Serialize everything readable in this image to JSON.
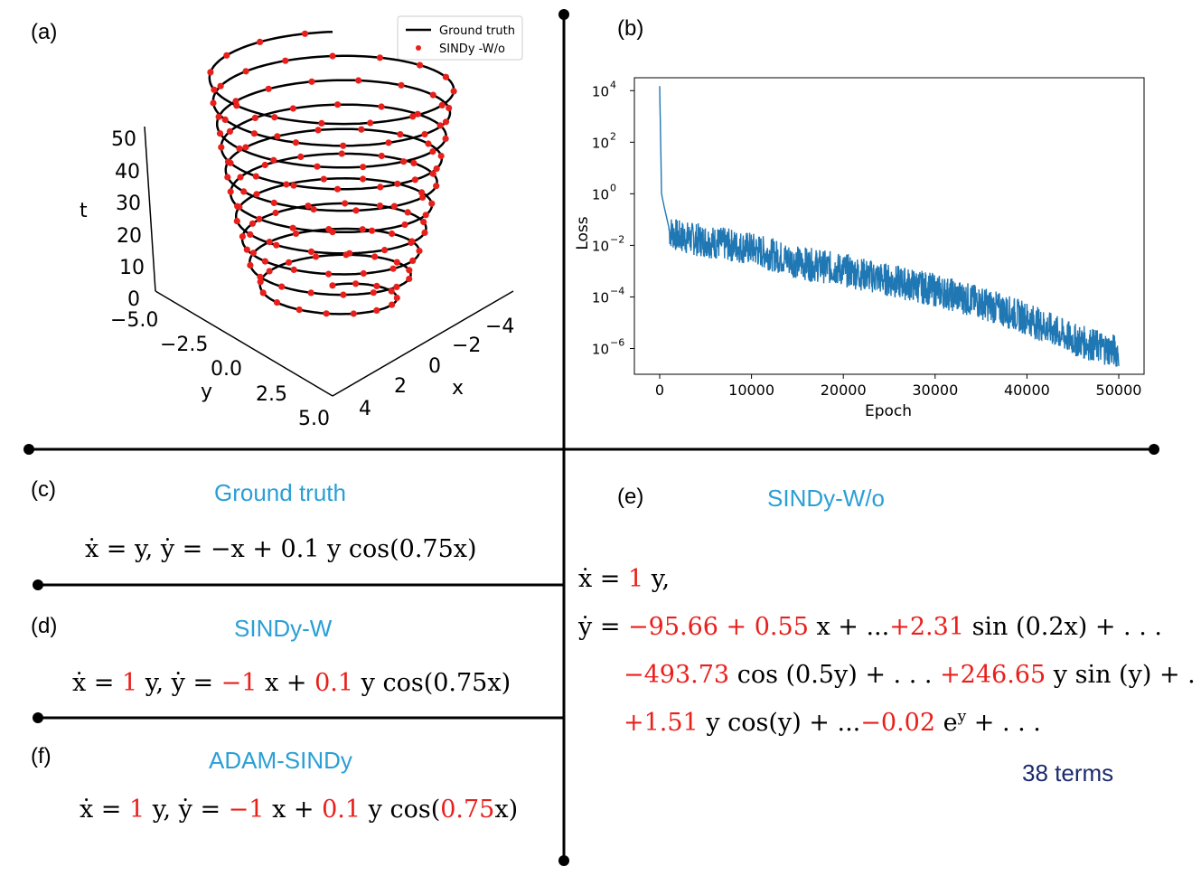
{
  "panels": {
    "a": {
      "label": "(a)",
      "legend": [
        "Ground truth",
        "SINDy -W/o"
      ],
      "axes": {
        "t_label": "t",
        "t_ticks": [
          "50",
          "40",
          "30",
          "20",
          "10",
          "0"
        ],
        "y_label": "y",
        "y_ticks": [
          "−5.0",
          "−2.5",
          "0.0",
          "2.5",
          "5.0"
        ],
        "x_label": "x",
        "x_ticks": [
          "4",
          "2",
          "0",
          "−2",
          "−4"
        ]
      },
      "colors": {
        "ground_truth": "#000000",
        "sindy": "#e8201c"
      }
    },
    "b": {
      "label": "(b)",
      "xlabel": "Epoch",
      "ylabel": "Loss",
      "xticks": [
        "0",
        "10000",
        "20000",
        "30000",
        "40000",
        "50000"
      ],
      "yticks": [
        "10",
        "10",
        "10",
        "10",
        "10",
        "10"
      ],
      "yexp": [
        "4",
        "2",
        "0",
        "−2",
        "−4",
        "−6"
      ],
      "line_color": "#1f77b4"
    },
    "c": {
      "label": "(c)",
      "title": "Ground truth"
    },
    "d": {
      "label": "(d)",
      "title": "SINDy-W"
    },
    "e": {
      "label": "(e)",
      "title": "SINDy-W/o",
      "terms": "38 terms"
    },
    "f": {
      "label": "(f)",
      "title": "ADAM-SINDy"
    }
  },
  "chart_data": [
    {
      "type": "line",
      "title": "",
      "xlabel": "Epoch",
      "ylabel": "Loss",
      "yscale": "log",
      "xlim": [
        0,
        50000
      ],
      "ylim_exp": [
        -7,
        4.5
      ],
      "series": [
        {
          "x": [
            0,
            200,
            500,
            1000,
            2000,
            5000,
            10000,
            15000,
            20000,
            25000,
            30000,
            35000,
            40000,
            45000,
            50000
          ],
          "values": [
            15000,
            1,
            0.3,
            0.05,
            0.03,
            0.02,
            0.01,
            0.003,
            0.0015,
            0.0006,
            0.00025,
            8e-05,
            2e-05,
            3e-06,
            1e-06
          ]
        }
      ]
    }
  ],
  "equations": {
    "c": [
      "ẋ = y,  ẏ = −x + 0.1 y cos(0.75x)"
    ],
    "d": [
      "ẋ = ",
      "1",
      " y,  ẏ = ",
      "−1",
      " x + ",
      "0.1",
      " y cos(0.75x)"
    ],
    "f": [
      "ẋ = ",
      "1",
      " y,  ẏ = ",
      "−1",
      " x + ",
      "0.1",
      " y cos(",
      "0.75",
      "x)"
    ],
    "e1": [
      "ẋ = ",
      "1",
      " y,"
    ],
    "e2": [
      "ẏ = ",
      "−95.66 + 0.55",
      " x + ...",
      "+2.31",
      " sin (0.2x) + . . ."
    ],
    "e3": [
      "−493.73",
      " cos (0.5y) + . . . ",
      "+246.65",
      " y sin (y) + . . ."
    ],
    "e4": [
      "+1.51",
      " y cos(y) + ...",
      "−0.02",
      " e",
      "y",
      " + . . ."
    ]
  }
}
